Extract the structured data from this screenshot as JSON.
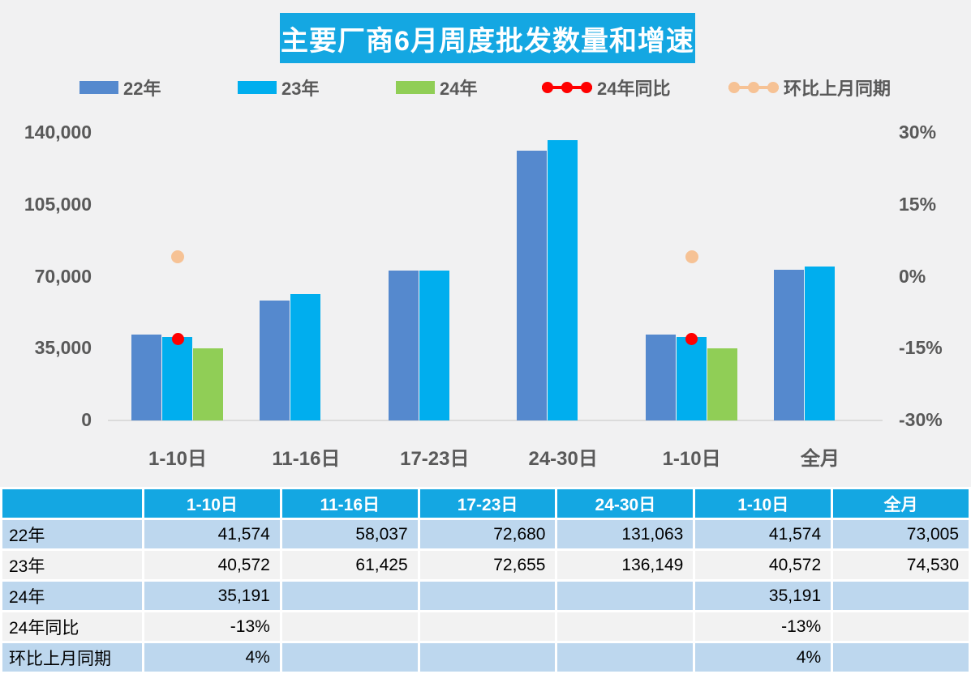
{
  "title": "主要厂商6月周度批发数量和增速",
  "colors": {
    "accent_cyan": "#14A7E2",
    "bar_22": "#5589CE",
    "bar_23": "#00AEEE",
    "bar_24": "#90CE56",
    "line_yoy": "#FF0000",
    "line_mom": "#F6C295",
    "chart_bg": "#F1F1F2",
    "table_row_blue": "#BDD7EE",
    "table_row_gray": "#F2F2F2",
    "axis_text": "#595959"
  },
  "legend": [
    {
      "label": "22年",
      "type": "bar",
      "color": "#5589CE"
    },
    {
      "label": "23年",
      "type": "bar",
      "color": "#00AEEE"
    },
    {
      "label": "24年",
      "type": "bar",
      "color": "#90CE56"
    },
    {
      "label": "24年同比",
      "type": "line",
      "color": "#FF0000"
    },
    {
      "label": "环比上月同期",
      "type": "line",
      "color": "#F6C295"
    }
  ],
  "chart_data": {
    "type": "bar",
    "title": "主要厂商6月周度批发数量和增速",
    "categories": [
      "1-10日",
      "11-16日",
      "17-23日",
      "24-30日",
      "1-10日",
      "全月"
    ],
    "series": [
      {
        "name": "22年",
        "type": "bar",
        "axis": "left",
        "color": "#5589CE",
        "values": [
          41574,
          58037,
          72680,
          131063,
          41574,
          73005
        ]
      },
      {
        "name": "23年",
        "type": "bar",
        "axis": "left",
        "color": "#00AEEE",
        "values": [
          40572,
          61425,
          72655,
          136149,
          40572,
          74530
        ]
      },
      {
        "name": "24年",
        "type": "bar",
        "axis": "left",
        "color": "#90CE56",
        "values": [
          35191,
          null,
          null,
          null,
          35191,
          null
        ]
      },
      {
        "name": "24年同比",
        "type": "point",
        "axis": "right",
        "color": "#FF0000",
        "values": [
          -13,
          null,
          null,
          null,
          -13,
          null
        ]
      },
      {
        "name": "环比上月同期",
        "type": "point",
        "axis": "right",
        "color": "#F6C295",
        "values": [
          4,
          null,
          null,
          null,
          4,
          null
        ]
      }
    ],
    "left_axis": {
      "label": "",
      "min": 0,
      "max": 140000,
      "ticks": [
        "140,000",
        "105,000",
        "70,000",
        "35,000",
        "0"
      ]
    },
    "right_axis": {
      "label": "",
      "min": -30,
      "max": 30,
      "ticks": [
        "30%",
        "15%",
        "0%",
        "-15%",
        "-30%"
      ]
    },
    "grid": false,
    "legend_position": "top"
  },
  "table": {
    "columns": [
      "",
      "1-10日",
      "11-16日",
      "17-23日",
      "24-30日",
      "1-10日",
      "全月"
    ],
    "rows": [
      {
        "label": "22年",
        "cells": [
          "41,574",
          "58,037",
          "72,680",
          "131,063",
          "41,574",
          "73,005"
        ]
      },
      {
        "label": "23年",
        "cells": [
          "40,572",
          "61,425",
          "72,655",
          "136,149",
          "40,572",
          "74,530"
        ]
      },
      {
        "label": "24年",
        "cells": [
          "35,191",
          "",
          "",
          "",
          "35,191",
          ""
        ]
      },
      {
        "label": "24年同比",
        "cells": [
          "-13%",
          "",
          "",
          "",
          "-13%",
          ""
        ]
      },
      {
        "label": "环比上月同期",
        "cells": [
          "4%",
          "",
          "",
          "",
          "4%",
          ""
        ]
      }
    ]
  }
}
